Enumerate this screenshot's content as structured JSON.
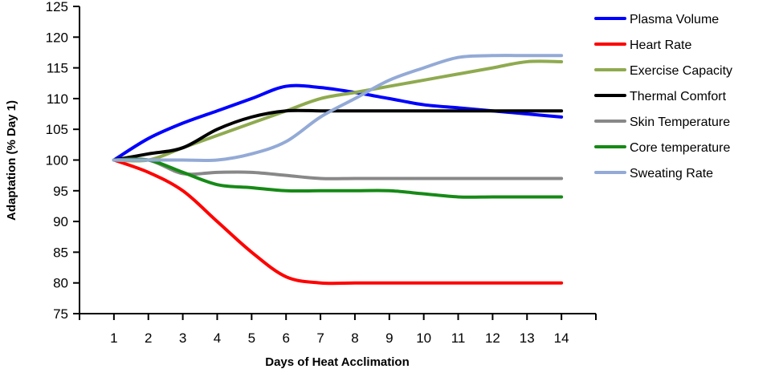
{
  "chart_data": {
    "type": "line",
    "title": "",
    "xlabel": "Days of Heat Acclimation",
    "ylabel": "Adaptation (% Day 1)",
    "x": [
      1,
      2,
      3,
      4,
      5,
      6,
      7,
      8,
      9,
      10,
      11,
      12,
      13,
      14
    ],
    "xlim": [
      0,
      15
    ],
    "ylim": [
      75,
      125
    ],
    "yticks": [
      75,
      80,
      85,
      90,
      95,
      100,
      105,
      110,
      115,
      120,
      125
    ],
    "grid": false,
    "legend": "right",
    "smooth": true,
    "series": [
      {
        "name": "Plasma Volume",
        "color": "#0000ff",
        "values": [
          100,
          103.5,
          106,
          108,
          110,
          112,
          111.8,
          111,
          110,
          109,
          108.5,
          108,
          107.5,
          107
        ]
      },
      {
        "name": "Heart Rate",
        "color": "#ff0000",
        "values": [
          100,
          98,
          95,
          90,
          85,
          81,
          80,
          80,
          80,
          80,
          80,
          80,
          80,
          80
        ]
      },
      {
        "name": "Exercise Capacity",
        "color": "#8faa4f",
        "values": [
          100,
          100,
          102,
          104,
          106,
          108,
          110,
          111,
          112,
          113,
          114,
          115,
          116,
          116
        ]
      },
      {
        "name": "Thermal Comfort",
        "color": "#000000",
        "values": [
          100,
          101,
          102,
          105,
          107,
          108,
          108,
          108,
          108,
          108,
          108,
          108,
          108,
          108
        ]
      },
      {
        "name": "Skin Temperature",
        "color": "#888888",
        "values": [
          100,
          100,
          97.8,
          98,
          98,
          97.5,
          97,
          97,
          97,
          97,
          97,
          97,
          97,
          97
        ]
      },
      {
        "name": "Core temperature",
        "color": "#168a16",
        "values": [
          100,
          100,
          98,
          96,
          95.5,
          95,
          95,
          95,
          95,
          94.5,
          94,
          94,
          94,
          94
        ]
      },
      {
        "name": "Sweating Rate",
        "color": "#93aad6",
        "values": [
          100,
          100,
          100,
          100,
          101,
          103,
          107,
          110,
          113,
          115,
          116.7,
          117,
          117,
          117
        ]
      }
    ]
  }
}
